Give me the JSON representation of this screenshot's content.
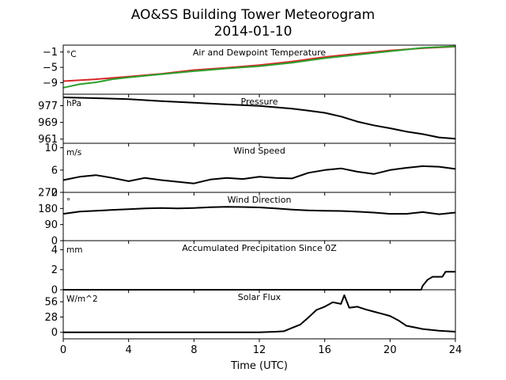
{
  "figure": {
    "title": "AO&SS Building Tower Meteorogram",
    "subtitle": "2014-01-10",
    "xlabel": "Time (UTC)"
  },
  "chart_data": [
    {
      "type": "line",
      "title": "Air and Dewpoint Temperature",
      "unit": "°C",
      "ylim": [
        -12,
        0.8
      ],
      "yticks": [
        -9,
        -5,
        -1
      ],
      "xlim": [
        0,
        24
      ],
      "xticks": [
        0,
        4,
        8,
        12,
        16,
        20,
        24
      ],
      "series": [
        {
          "color": "#d62728",
          "x": [
            0,
            2,
            4,
            6,
            8,
            10,
            12,
            14,
            16,
            18,
            20,
            22,
            24
          ],
          "y": [
            -8.6,
            -8.1,
            -7.4,
            -6.7,
            -5.7,
            -5.1,
            -4.4,
            -3.5,
            -2.3,
            -1.4,
            -0.6,
            0.0,
            0.4
          ]
        },
        {
          "color": "#2ca02c",
          "x": [
            0,
            1,
            2,
            3,
            4,
            6,
            8,
            10,
            12,
            14,
            16,
            18,
            20,
            22,
            24
          ],
          "y": [
            -10.3,
            -9.4,
            -8.9,
            -8.1,
            -7.6,
            -6.8,
            -6.0,
            -5.3,
            -4.7,
            -3.8,
            -2.6,
            -1.7,
            -0.8,
            0.1,
            0.5
          ]
        }
      ]
    },
    {
      "type": "line",
      "title": "Pressure",
      "unit": "hPa",
      "ylim": [
        959,
        982.5
      ],
      "yticks": [
        961,
        969,
        977
      ],
      "xlim": [
        0,
        24
      ],
      "xticks": [
        0,
        4,
        8,
        12,
        16,
        20,
        24
      ],
      "series": [
        {
          "color": "#000000",
          "x": [
            0,
            2,
            4,
            6,
            8,
            10,
            12,
            14,
            15,
            16,
            17,
            18,
            19,
            20,
            21,
            22,
            23,
            24
          ],
          "y": [
            981,
            980.6,
            980.1,
            979.2,
            978.4,
            977.6,
            976.9,
            975.6,
            974.6,
            973.6,
            971.8,
            969.4,
            967.6,
            966.2,
            964.6,
            963.4,
            961.8,
            961.2
          ]
        }
      ]
    },
    {
      "type": "line",
      "title": "Wind Speed",
      "unit": "m/s",
      "ylim": [
        2,
        10.8
      ],
      "yticks": [
        2,
        6,
        10
      ],
      "xlim": [
        0,
        24
      ],
      "xticks": [
        0,
        4,
        8,
        12,
        16,
        20,
        24
      ],
      "series": [
        {
          "color": "#000000",
          "x": [
            0,
            1,
            2,
            3,
            4,
            5,
            6,
            7,
            8,
            9,
            10,
            11,
            12,
            13,
            14,
            15,
            16,
            17,
            18,
            19,
            20,
            21,
            22,
            23,
            24
          ],
          "y": [
            4.2,
            4.8,
            5.1,
            4.6,
            4.0,
            4.6,
            4.2,
            3.9,
            3.6,
            4.3,
            4.6,
            4.4,
            4.8,
            4.6,
            4.5,
            5.5,
            6.0,
            6.3,
            5.7,
            5.3,
            6.0,
            6.4,
            6.7,
            6.6,
            6.2
          ]
        }
      ]
    },
    {
      "type": "line",
      "title": "Wind Direction",
      "unit": "°",
      "ylim": [
        0,
        270
      ],
      "yticks": [
        0,
        90,
        180,
        270
      ],
      "xlim": [
        0,
        24
      ],
      "xticks": [
        0,
        4,
        8,
        12,
        16,
        20,
        24
      ],
      "series": [
        {
          "color": "#000000",
          "x": [
            0,
            1,
            2,
            3,
            4,
            5,
            6,
            7,
            8,
            9,
            10,
            11,
            12,
            13,
            14,
            15,
            16,
            17,
            18,
            19,
            20,
            21,
            22,
            23,
            24
          ],
          "y": [
            150,
            163,
            167,
            172,
            176,
            180,
            183,
            180,
            183,
            187,
            189,
            188,
            186,
            180,
            174,
            169,
            167,
            166,
            162,
            157,
            150,
            150,
            160,
            148,
            157
          ]
        }
      ]
    },
    {
      "type": "line",
      "title": "Accumulated Precipitation Since 0Z",
      "unit": "mm",
      "ylim": [
        0,
        4.9
      ],
      "yticks": [
        0,
        2,
        4
      ],
      "xlim": [
        0,
        24
      ],
      "xticks": [
        0,
        4,
        8,
        12,
        16,
        20,
        24
      ],
      "series": [
        {
          "color": "#000000",
          "x": [
            0,
            21.9,
            22.0,
            22.3,
            22.6,
            23.2,
            23.4,
            24
          ],
          "y": [
            0,
            0,
            0.4,
            1.0,
            1.3,
            1.3,
            1.8,
            1.8
          ]
        }
      ]
    },
    {
      "type": "line",
      "title": "Solar Flux",
      "unit": "W/m^2",
      "ylim": [
        -12,
        78
      ],
      "yticks": [
        0,
        28,
        56
      ],
      "xlim": [
        0,
        24
      ],
      "xticks": [
        0,
        4,
        8,
        12,
        16,
        20,
        24
      ],
      "series": [
        {
          "color": "#000000",
          "x": [
            0,
            12,
            13,
            13.5,
            14,
            14.5,
            15,
            15.5,
            16,
            16.5,
            17,
            17.2,
            17.5,
            18,
            18.5,
            19,
            19.5,
            20,
            20.5,
            21,
            21.5,
            22,
            23,
            24
          ],
          "y": [
            0,
            0,
            1,
            2,
            8,
            14,
            27,
            41,
            47,
            55,
            52,
            68,
            45,
            47,
            42,
            38,
            34,
            30,
            22,
            12,
            9,
            6,
            3,
            1
          ]
        }
      ]
    }
  ]
}
